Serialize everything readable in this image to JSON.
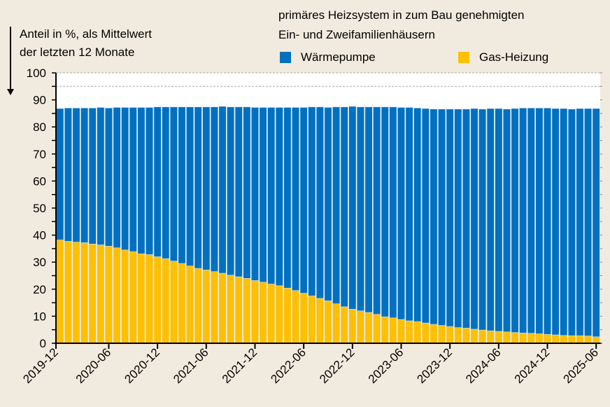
{
  "chart_data": {
    "type": "bar",
    "stacked": true,
    "ylabel": [
      "Anteil in %, als Mittelwert",
      "der letzten 12 Monate"
    ],
    "legend_title": [
      "primäres Heizsystem in zum Bau genehmigten",
      "Ein- und Zweifamilienhäusern"
    ],
    "ylim": [
      0,
      100
    ],
    "yticks": [
      0,
      10,
      20,
      30,
      40,
      50,
      60,
      70,
      80,
      90,
      100
    ],
    "xtick_labels": [
      "2019-12",
      "2020-06",
      "2020-12",
      "2021-06",
      "2021-12",
      "2022-06",
      "2022-12",
      "2023-06",
      "2023-12",
      "2024-06",
      "2024-12",
      "2025-06"
    ],
    "grid": "dashed lines at 95 and 100",
    "legend_placement": "top-right",
    "categories": [
      "2019-12",
      "2020-01",
      "2020-02",
      "2020-03",
      "2020-04",
      "2020-05",
      "2020-06",
      "2020-07",
      "2020-08",
      "2020-09",
      "2020-10",
      "2020-11",
      "2020-12",
      "2021-01",
      "2021-02",
      "2021-03",
      "2021-04",
      "2021-05",
      "2021-06",
      "2021-07",
      "2021-08",
      "2021-09",
      "2021-10",
      "2021-11",
      "2021-12",
      "2022-01",
      "2022-02",
      "2022-03",
      "2022-04",
      "2022-05",
      "2022-06",
      "2022-07",
      "2022-08",
      "2022-09",
      "2022-10",
      "2022-11",
      "2022-12",
      "2023-01",
      "2023-02",
      "2023-03",
      "2023-04",
      "2023-05",
      "2023-06",
      "2023-07",
      "2023-08",
      "2023-09",
      "2023-10",
      "2023-11",
      "2023-12",
      "2024-01",
      "2024-02",
      "2024-03",
      "2024-04",
      "2024-05",
      "2024-06",
      "2024-07",
      "2024-08",
      "2024-09",
      "2024-10",
      "2024-11",
      "2024-12",
      "2025-01",
      "2025-02",
      "2025-03",
      "2025-04",
      "2025-05",
      "2025-06"
    ],
    "series": [
      {
        "name": "Gas-Heizung",
        "color": "#ffc000",
        "values": [
          38.2,
          37.7,
          37.4,
          37.2,
          36.7,
          36.4,
          35.9,
          35.3,
          34.5,
          33.9,
          33.1,
          32.8,
          32.0,
          31.3,
          30.4,
          29.5,
          28.6,
          27.7,
          27.1,
          26.5,
          25.9,
          25.2,
          24.6,
          24.0,
          23.2,
          22.6,
          21.9,
          21.3,
          20.4,
          19.5,
          18.5,
          17.5,
          16.6,
          15.7,
          14.6,
          13.5,
          12.6,
          12.0,
          11.4,
          10.7,
          9.8,
          9.4,
          8.8,
          8.3,
          8.0,
          7.5,
          7.0,
          6.6,
          6.2,
          5.8,
          5.6,
          5.2,
          4.9,
          4.6,
          4.4,
          4.2,
          4.0,
          3.8,
          3.7,
          3.5,
          3.3,
          3.1,
          2.9,
          2.8,
          2.8,
          2.7,
          2.4
        ]
      },
      {
        "name": "Wärmepumpe",
        "color": "#0070c0",
        "values": [
          48.6,
          49.3,
          49.6,
          49.8,
          50.3,
          50.8,
          51.1,
          51.9,
          52.7,
          53.3,
          54.1,
          54.4,
          55.4,
          56.1,
          57.0,
          57.9,
          58.8,
          59.7,
          60.3,
          60.9,
          61.7,
          62.2,
          62.8,
          63.4,
          64.0,
          64.6,
          65.3,
          65.9,
          66.8,
          67.7,
          68.7,
          69.9,
          70.8,
          71.5,
          72.8,
          73.9,
          75.0,
          75.4,
          76.0,
          76.7,
          77.6,
          78.0,
          78.4,
          78.9,
          79.0,
          79.3,
          79.6,
          80.0,
          80.4,
          80.8,
          81.0,
          81.6,
          81.7,
          82.2,
          82.4,
          82.4,
          82.8,
          83.2,
          83.3,
          83.5,
          83.7,
          83.7,
          83.9,
          83.8,
          84.0,
          84.1,
          84.4
        ]
      }
    ]
  }
}
